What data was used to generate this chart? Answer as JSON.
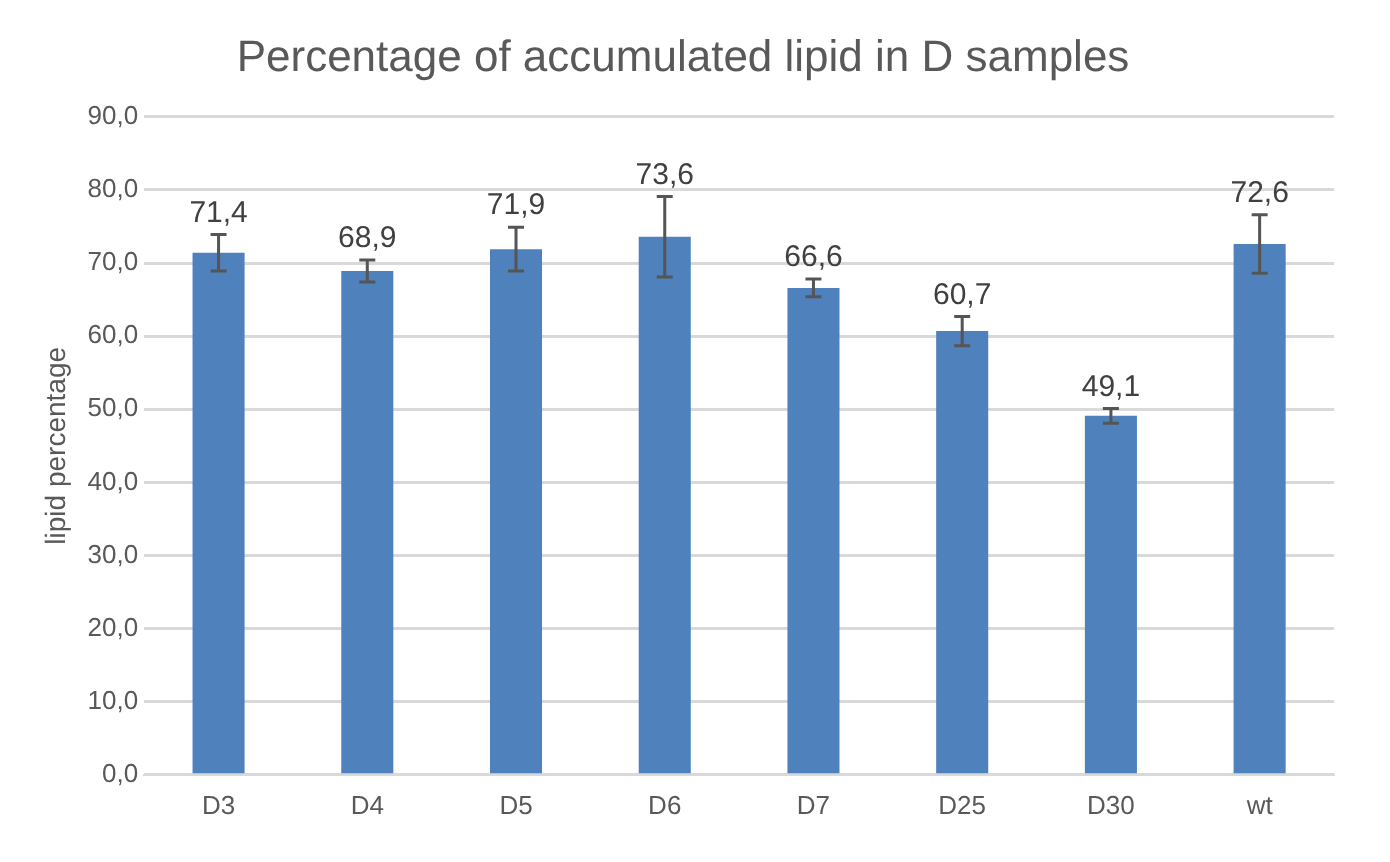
{
  "chart_data": {
    "type": "bar",
    "title": "Percentage of accumulated lipid in D samples",
    "ylabel": "lipid percentage",
    "categories": [
      "D3",
      "D4",
      "D5",
      "D6",
      "D7",
      "D25",
      "D30",
      "wt"
    ],
    "values": [
      71.4,
      68.9,
      71.9,
      73.6,
      66.6,
      60.7,
      49.1,
      72.6
    ],
    "errors": [
      2.5,
      1.5,
      3,
      5.5,
      1.2,
      2,
      1,
      4
    ],
    "value_labels": [
      "71,4",
      "68,9",
      "71,9",
      "73,6",
      "66,6",
      "60,7",
      "49,1",
      "72,6"
    ],
    "color": "#4f81bd",
    "ylim": [
      0,
      90
    ],
    "yticks": [
      {
        "value": 0,
        "label": "0,0"
      },
      {
        "value": 10,
        "label": "10,0"
      },
      {
        "value": 20,
        "label": "20,0"
      },
      {
        "value": 30,
        "label": "30,0"
      },
      {
        "value": 40,
        "label": "40,0"
      },
      {
        "value": 50,
        "label": "50,0"
      },
      {
        "value": 60,
        "label": "60,0"
      },
      {
        "value": 70,
        "label": "70,0"
      },
      {
        "value": 80,
        "label": "80,0"
      },
      {
        "value": 90,
        "label": "90,0"
      }
    ],
    "grid": "y"
  }
}
